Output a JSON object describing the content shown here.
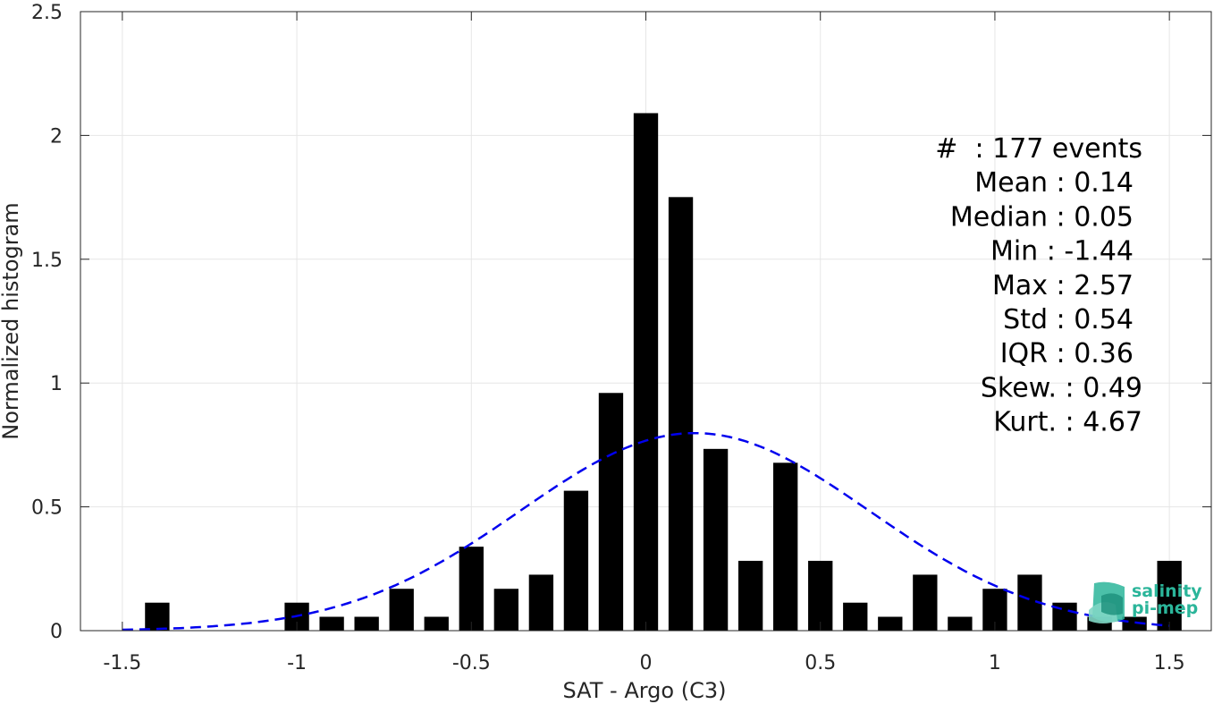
{
  "chart_data": {
    "type": "bar",
    "xlabel": "SAT - Argo (C3)",
    "ylabel": "Normalized histogram",
    "xlim": [
      -1.62,
      1.62
    ],
    "ylim": [
      0,
      2.5
    ],
    "xticks": [
      -1.5,
      -1,
      -0.5,
      0,
      0.5,
      1,
      1.5
    ],
    "xtick_labels": [
      "-1.5",
      "-1",
      "-0.5",
      "0",
      "0.5",
      "1",
      "1.5"
    ],
    "yticks": [
      0,
      0.5,
      1,
      1.5,
      2,
      2.5
    ],
    "ytick_labels": [
      "0",
      "0.5",
      "1",
      "1.5",
      "2",
      "2.5"
    ],
    "grid": true,
    "bar_width": 0.07,
    "bar_color": "#000000",
    "bars": [
      {
        "x": -1.4,
        "y": 0.113
      },
      {
        "x": -1.0,
        "y": 0.113
      },
      {
        "x": -0.9,
        "y": 0.056
      },
      {
        "x": -0.8,
        "y": 0.056
      },
      {
        "x": -0.7,
        "y": 0.169
      },
      {
        "x": -0.6,
        "y": 0.056
      },
      {
        "x": -0.5,
        "y": 0.339
      },
      {
        "x": -0.4,
        "y": 0.169
      },
      {
        "x": -0.3,
        "y": 0.226
      },
      {
        "x": -0.2,
        "y": 0.565
      },
      {
        "x": -0.1,
        "y": 0.96
      },
      {
        "x": 0.0,
        "y": 2.09
      },
      {
        "x": 0.1,
        "y": 1.751
      },
      {
        "x": 0.2,
        "y": 0.734
      },
      {
        "x": 0.3,
        "y": 0.282
      },
      {
        "x": 0.4,
        "y": 0.678
      },
      {
        "x": 0.5,
        "y": 0.282
      },
      {
        "x": 0.6,
        "y": 0.113
      },
      {
        "x": 0.7,
        "y": 0.056
      },
      {
        "x": 0.8,
        "y": 0.226
      },
      {
        "x": 0.9,
        "y": 0.056
      },
      {
        "x": 1.0,
        "y": 0.169
      },
      {
        "x": 1.1,
        "y": 0.226
      },
      {
        "x": 1.2,
        "y": 0.113
      },
      {
        "x": 1.3,
        "y": 0.056
      },
      {
        "x": 1.4,
        "y": 0.056
      },
      {
        "x": 1.5,
        "y": 0.282
      }
    ],
    "fit_curve": {
      "type": "gaussian",
      "mean": 0.14,
      "std": 0.5,
      "x_range": [
        -1.5,
        1.5
      ],
      "color": "#0000ee",
      "style": "dashed"
    },
    "stats": [
      "#  : 177 events",
      "Mean : 0.14",
      "Median : 0.05",
      "Min : -1.44",
      "Max : 2.57",
      "Std : 0.54",
      "IQR : 0.36",
      "Skew. : 0.49",
      "Kurt. : 4.67"
    ],
    "stats_placement": "top-right"
  },
  "logo": {
    "line1": "salinity",
    "line2": "pi-mep",
    "color": "#2bb59a"
  }
}
